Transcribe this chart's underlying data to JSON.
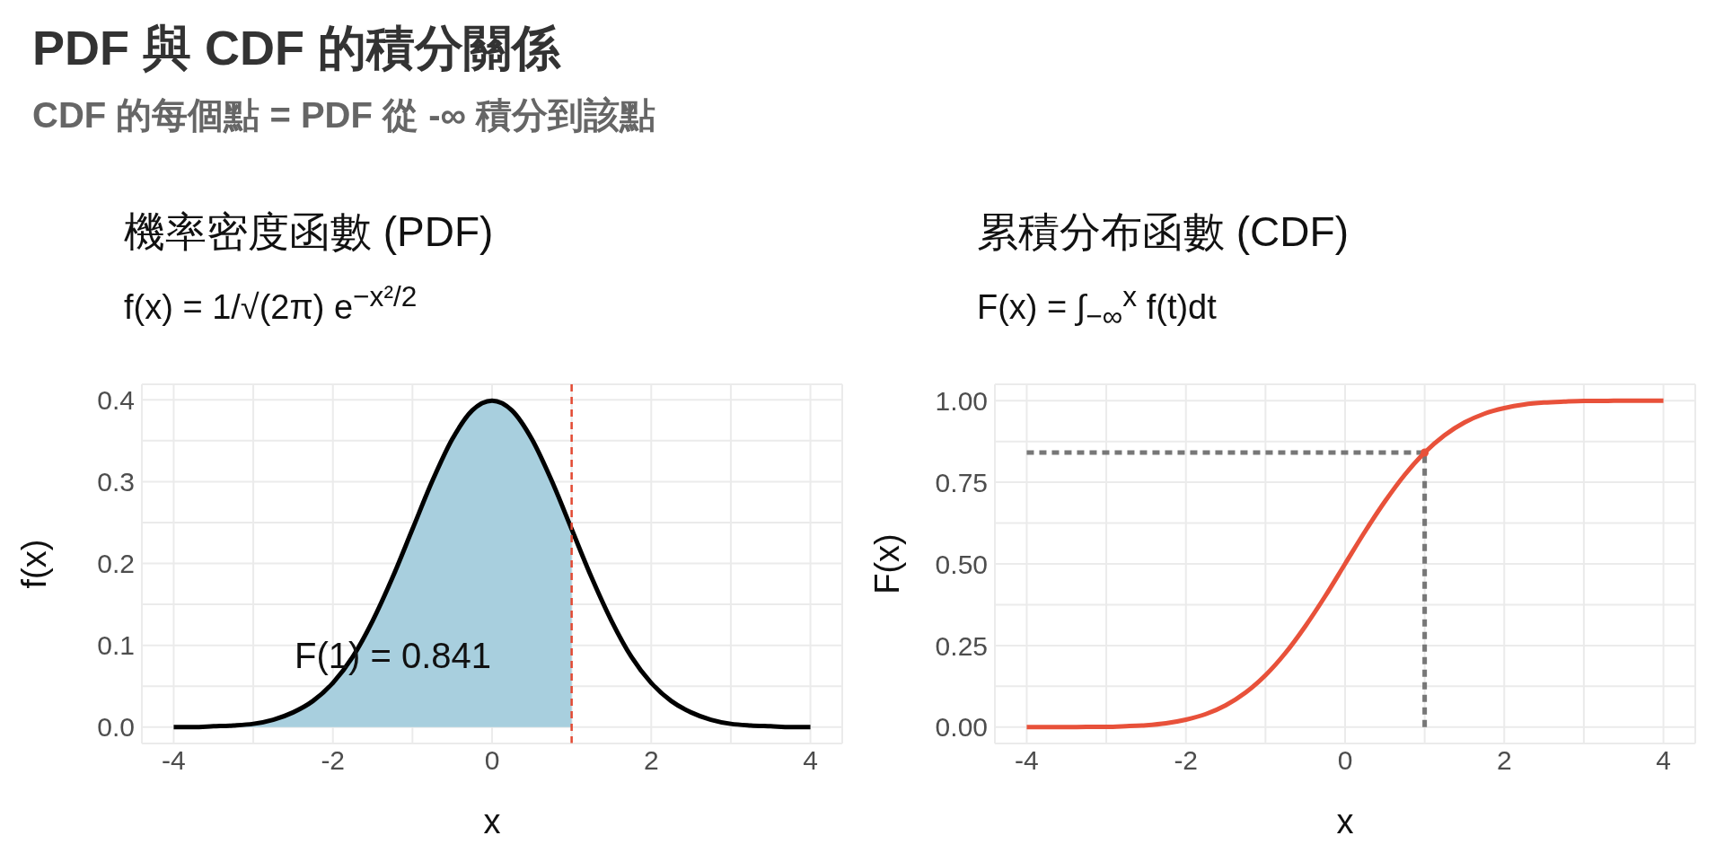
{
  "chart_data": [
    {
      "type": "other",
      "title": "PDF 與 CDF 的積分關係",
      "subtitle": "CDF 的每個點 = PDF 從 -∞ 積分到該點"
    },
    {
      "type": "line",
      "title": "機率密度函數 (PDF)",
      "subtitle": "f(x) = 1/√(2π) e$^{−x²/2}$",
      "xlabel": "x",
      "ylabel": "f(x)",
      "series": [
        {
          "type": "area",
          "color": "#a8cfde",
          "x": [
            -4,
            -3.75,
            -3.5,
            -3.25,
            -3,
            -2.75,
            -2.5,
            -2.25,
            -2,
            -1.75,
            -1.5,
            -1.25,
            -1,
            -0.75,
            -0.5,
            -0.25,
            0,
            0.25,
            0.5,
            0.75,
            1
          ],
          "values": [
            0.0,
            0.0,
            0.001,
            0.002,
            0.004,
            0.009,
            0.018,
            0.032,
            0.054,
            0.086,
            0.13,
            0.183,
            0.242,
            0.301,
            0.352,
            0.387,
            0.399,
            0.387,
            0.352,
            0.301,
            0.242
          ]
        },
        {
          "type": "line",
          "color": "#000000",
          "x": [
            -4,
            -3.75,
            -3.5,
            -3.25,
            -3,
            -2.75,
            -2.5,
            -2.25,
            -2,
            -1.75,
            -1.5,
            -1.25,
            -1,
            -0.75,
            -0.5,
            -0.25,
            0,
            0.25,
            0.5,
            0.75,
            1,
            1.25,
            1.5,
            1.75,
            2,
            2.25,
            2.5,
            2.75,
            3,
            3.25,
            3.5,
            3.75,
            4
          ],
          "values": [
            0.0,
            0.0,
            0.001,
            0.002,
            0.004,
            0.009,
            0.018,
            0.032,
            0.054,
            0.086,
            0.13,
            0.183,
            0.242,
            0.301,
            0.352,
            0.387,
            0.399,
            0.387,
            0.352,
            0.301,
            0.242,
            0.183,
            0.13,
            0.086,
            0.054,
            0.032,
            0.018,
            0.009,
            0.004,
            0.002,
            0.001,
            0.0,
            0.0
          ]
        }
      ],
      "ref_lines": [
        {
          "axis": "x",
          "value": 1,
          "color": "#e34a33",
          "line_style": "dashed"
        }
      ],
      "annotations": [
        "F(1) = 0.841"
      ],
      "xlim": [
        -4.4,
        4.4
      ],
      "xticks": [
        -4,
        {
          "value": -3,
          "label": null
        },
        -2,
        {
          "value": -1,
          "label": null
        },
        0,
        {
          "value": 1,
          "label": null
        },
        2,
        {
          "value": 3,
          "label": null
        },
        4
      ],
      "ylim": [
        -0.02,
        0.419
      ],
      "yticks": [
        {
          "value": 0,
          "label": "0.0"
        },
        {
          "value": 0.05,
          "label": null
        },
        0.1,
        {
          "value": 0.15,
          "label": null
        },
        0.2,
        {
          "value": 0.25,
          "label": null
        },
        0.3,
        {
          "value": 0.35,
          "label": null
        },
        0.4
      ],
      "grid": true,
      "marker": "none"
    },
    {
      "type": "line",
      "title": "累積分布函數 (CDF)",
      "subtitle": "F(x) = ∫$_{−∞}$$^{x}$ f(t)dt",
      "xlabel": "x",
      "ylabel": "F(x)",
      "series": [
        {
          "type": "line",
          "color": "#777777",
          "line_style": "dashed",
          "x": [
            -4,
            1
          ],
          "values": [
            0.841,
            0.841
          ]
        },
        {
          "type": "line",
          "color": "#777777",
          "line_style": "dashed",
          "x": [
            1,
            1
          ],
          "values": [
            0,
            0.841
          ]
        },
        {
          "type": "line",
          "color": "#e8513a",
          "x": [
            -4,
            -3.75,
            -3.5,
            -3.25,
            -3,
            -2.75,
            -2.5,
            -2.25,
            -2,
            -1.75,
            -1.5,
            -1.25,
            -1,
            -0.75,
            -0.5,
            -0.25,
            0,
            0.25,
            0.5,
            0.75,
            1,
            1.25,
            1.5,
            1.75,
            2,
            2.25,
            2.5,
            2.75,
            3,
            3.25,
            3.5,
            3.75,
            4
          ],
          "values": [
            0.0,
            0.0,
            0.0,
            0.001,
            0.001,
            0.003,
            0.006,
            0.012,
            0.023,
            0.04,
            0.067,
            0.106,
            0.159,
            0.227,
            0.309,
            0.401,
            0.5,
            0.599,
            0.691,
            0.773,
            0.841,
            0.894,
            0.933,
            0.96,
            0.977,
            0.988,
            0.994,
            0.997,
            0.999,
            0.999,
            1.0,
            1.0,
            1.0
          ]
        },
        {
          "type": "scatter",
          "color": "#e8513a",
          "marker": "circle",
          "x": [
            1
          ],
          "values": [
            0.841
          ]
        }
      ],
      "xlim": [
        -4.4,
        4.4
      ],
      "xticks": [
        -4,
        {
          "value": -3,
          "label": null
        },
        -2,
        {
          "value": -1,
          "label": null
        },
        0,
        {
          "value": 1,
          "label": null
        },
        2,
        {
          "value": 3,
          "label": null
        },
        4
      ],
      "ylim": [
        -0.05,
        1.05
      ],
      "yticks": [
        {
          "value": 0,
          "label": "0.00"
        },
        {
          "value": 0.125,
          "label": null
        },
        {
          "value": 0.25,
          "label": "0.25"
        },
        {
          "value": 0.375,
          "label": null
        },
        {
          "value": 0.5,
          "label": "0.50"
        },
        {
          "value": 0.625,
          "label": null
        },
        {
          "value": 0.75,
          "label": "0.75"
        },
        {
          "value": 0.875,
          "label": null
        },
        {
          "value": 1,
          "label": "1.00"
        }
      ],
      "grid": true,
      "marker": "none"
    }
  ]
}
